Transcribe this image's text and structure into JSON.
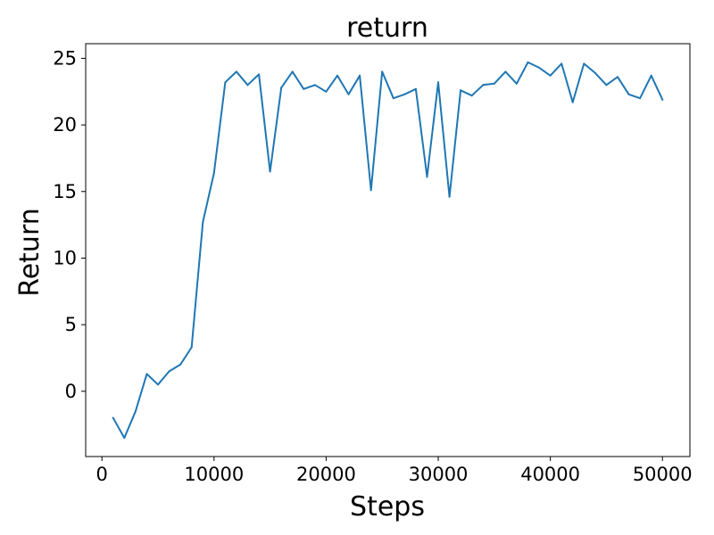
{
  "chart_data": {
    "type": "line",
    "title": "return",
    "xlabel": "Steps",
    "ylabel": "Return",
    "xlim": [
      -1450,
      52450
    ],
    "ylim": [
      -4.9,
      26.1
    ],
    "x_ticks": [
      0,
      10000,
      20000,
      30000,
      40000,
      50000
    ],
    "x_tick_labels": [
      "0",
      "10000",
      "20000",
      "30000",
      "40000",
      "50000"
    ],
    "y_ticks": [
      0,
      5,
      10,
      15,
      20,
      25
    ],
    "y_tick_labels": [
      "0",
      "5",
      "10",
      "15",
      "20",
      "25"
    ],
    "grid": false,
    "series": [
      {
        "color": "#1f77b4",
        "x": [
          1000,
          2000,
          3000,
          4000,
          5000,
          6000,
          7000,
          8000,
          9000,
          10000,
          11000,
          12000,
          13000,
          14000,
          15000,
          16000,
          17000,
          18000,
          19000,
          20000,
          21000,
          22000,
          23000,
          24000,
          25000,
          26000,
          27000,
          28000,
          29000,
          30000,
          31000,
          32000,
          33000,
          34000,
          35000,
          36000,
          37000,
          38000,
          39000,
          40000,
          41000,
          42000,
          43000,
          44000,
          45000,
          46000,
          47000,
          48000,
          49000,
          50000
        ],
        "values": [
          -2.0,
          -3.5,
          -1.5,
          1.3,
          0.5,
          1.5,
          2.0,
          3.3,
          12.7,
          16.4,
          23.2,
          24.0,
          23.0,
          23.8,
          16.5,
          22.8,
          24.0,
          22.7,
          23.0,
          22.5,
          23.7,
          22.3,
          23.7,
          15.1,
          24.0,
          22.0,
          22.3,
          22.7,
          16.1,
          23.2,
          14.6,
          22.6,
          22.2,
          23.0,
          23.1,
          24.0,
          23.1,
          24.7,
          24.3,
          23.7,
          24.6,
          21.7,
          24.6,
          23.9,
          23.0,
          23.6,
          22.3,
          22.0,
          23.7,
          21.9
        ]
      }
    ]
  }
}
